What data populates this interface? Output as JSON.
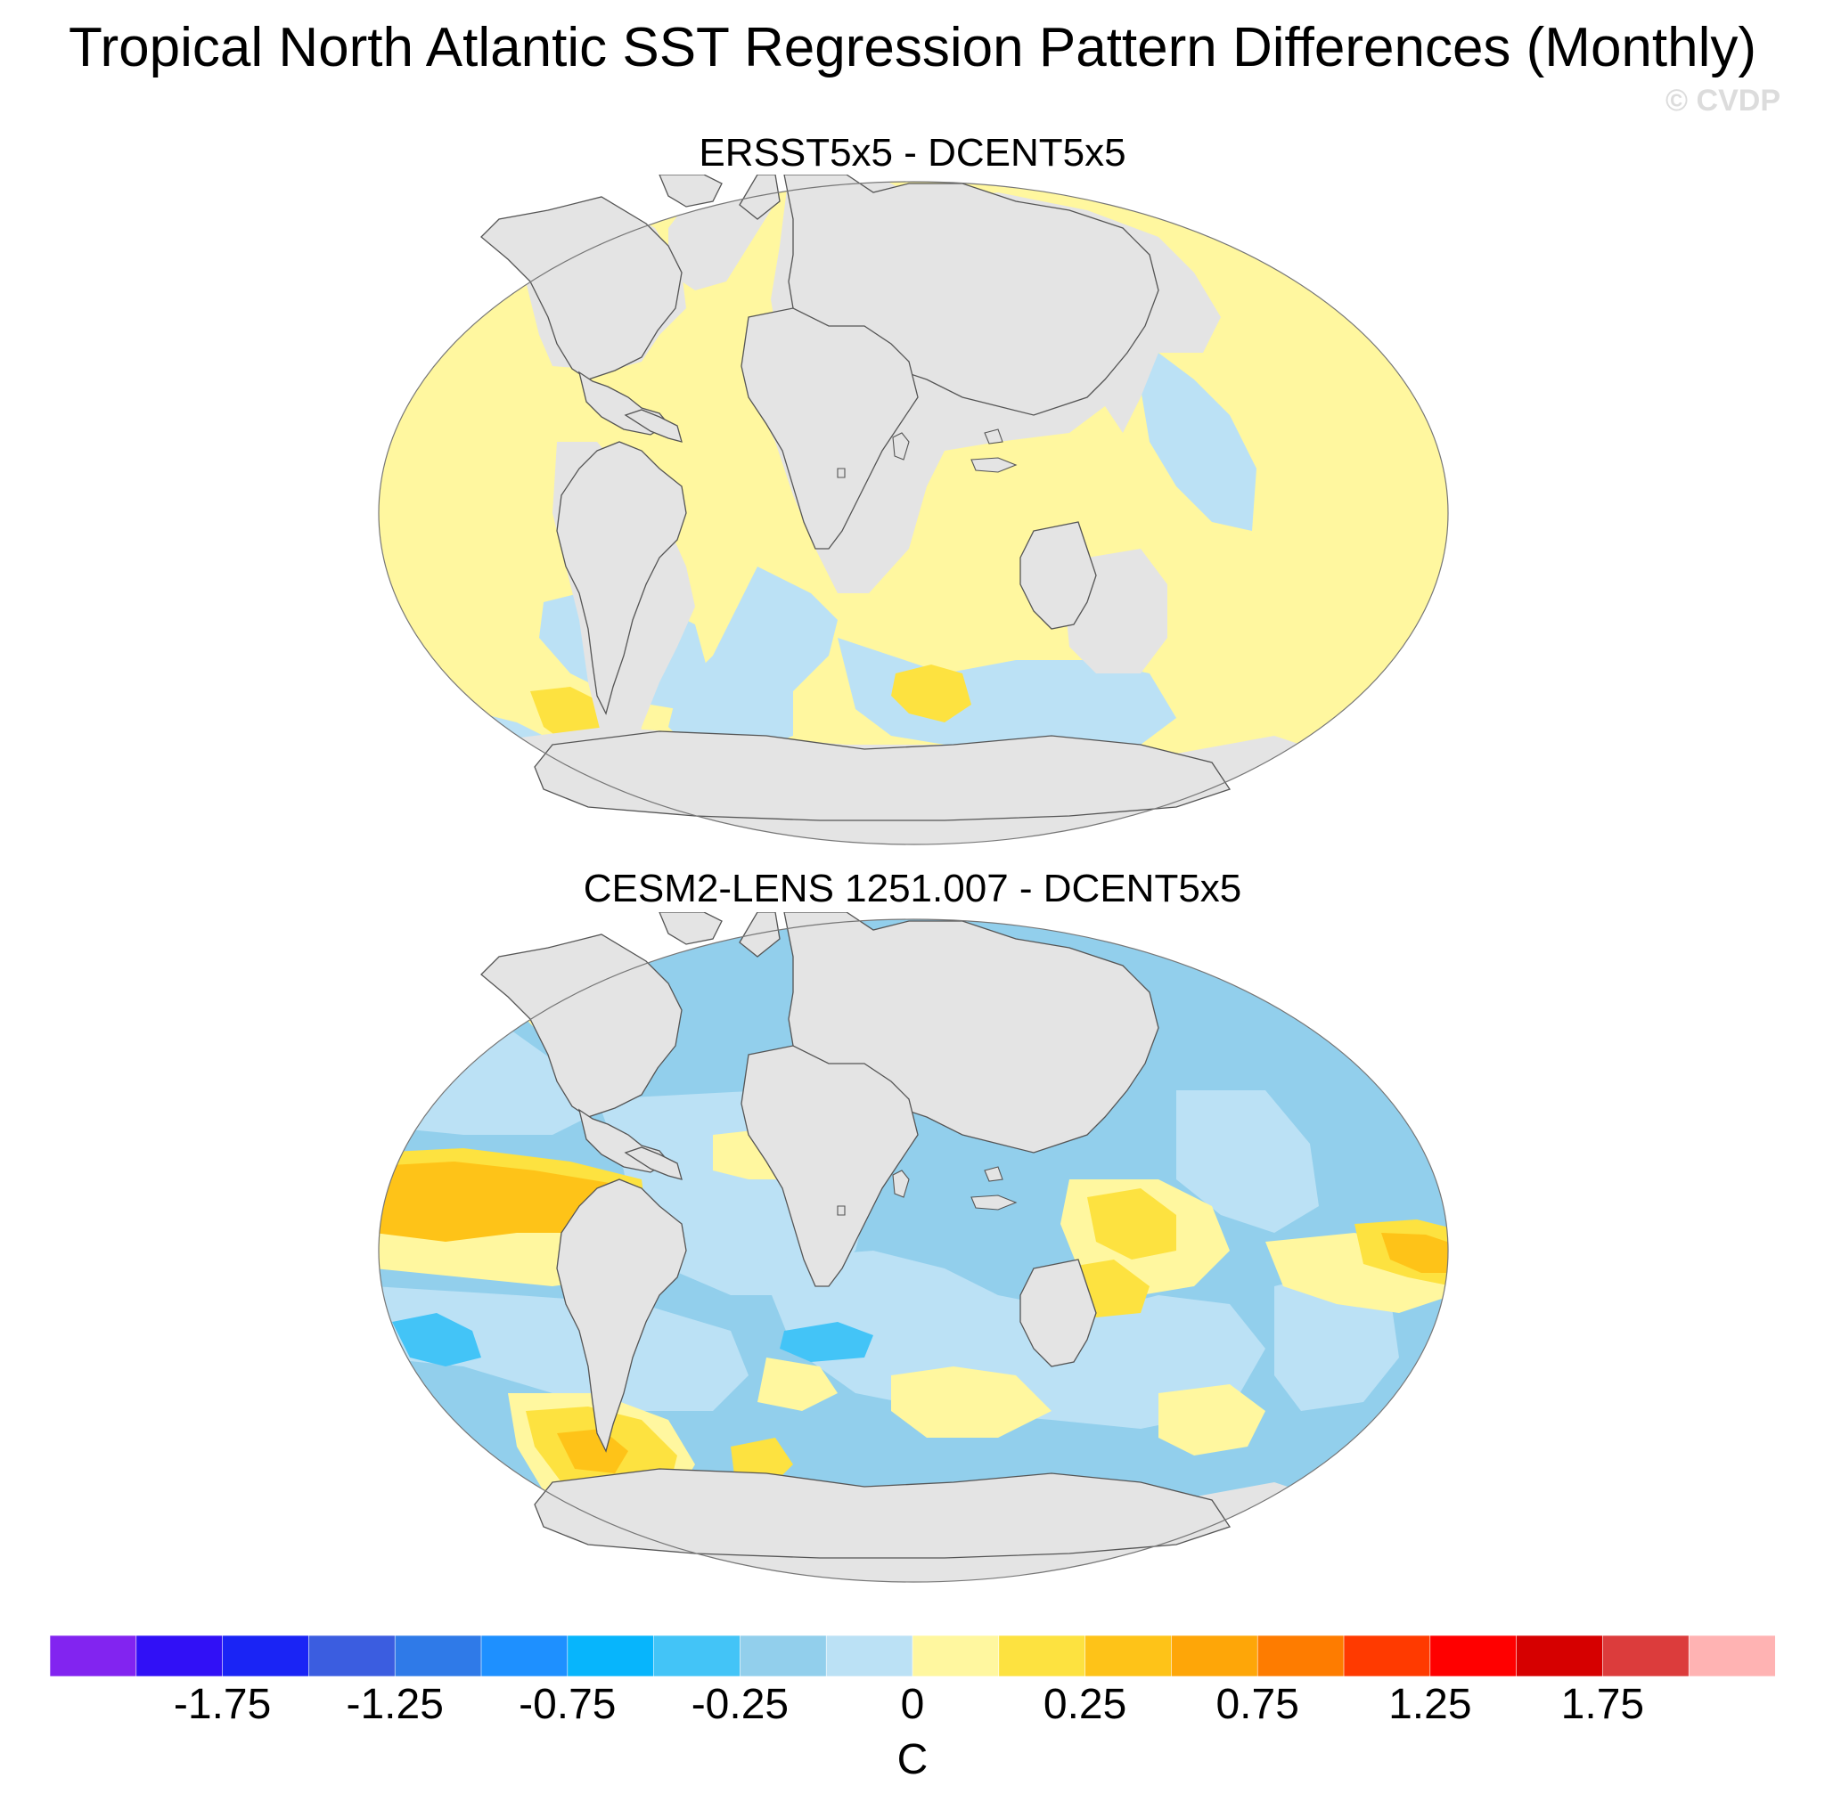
{
  "title": "Tropical North Atlantic SST Regression Pattern Differences (Monthly)",
  "watermark": "© CVDP",
  "panels": [
    {
      "title": "ERSST5x5 - DCENT5x5"
    },
    {
      "title": "CESM2-LENS 1251.007 - DCENT5x5"
    }
  ],
  "colorbar": {
    "units": "C",
    "levels": [
      -2,
      -1.75,
      -1.5,
      -1.25,
      -1,
      -0.75,
      -0.5,
      -0.25,
      -0.1,
      0,
      0.1,
      0.25,
      0.5,
      0.75,
      1,
      1.25,
      1.5,
      1.75,
      2
    ],
    "tick_labels": [
      "-1.75",
      "-1.25",
      "-0.75",
      "-0.25",
      "0",
      "0.25",
      "0.75",
      "1.25",
      "1.75"
    ],
    "colors": [
      "#8224f0",
      "#3110f6",
      "#1a24f5",
      "#3b5de0",
      "#2f7ae8",
      "#1e90ff",
      "#07b5fc",
      "#43c4f7",
      "#92cfec",
      "#bbe1f5",
      "#fff79f",
      "#fde240",
      "#fec318",
      "#fea608",
      "#fe7c00",
      "#ff3a00",
      "#ff0000",
      "#d60000",
      "#dc3c3c",
      "#ffb3b3"
    ],
    "missing_color": "#e4e4e4"
  }
}
